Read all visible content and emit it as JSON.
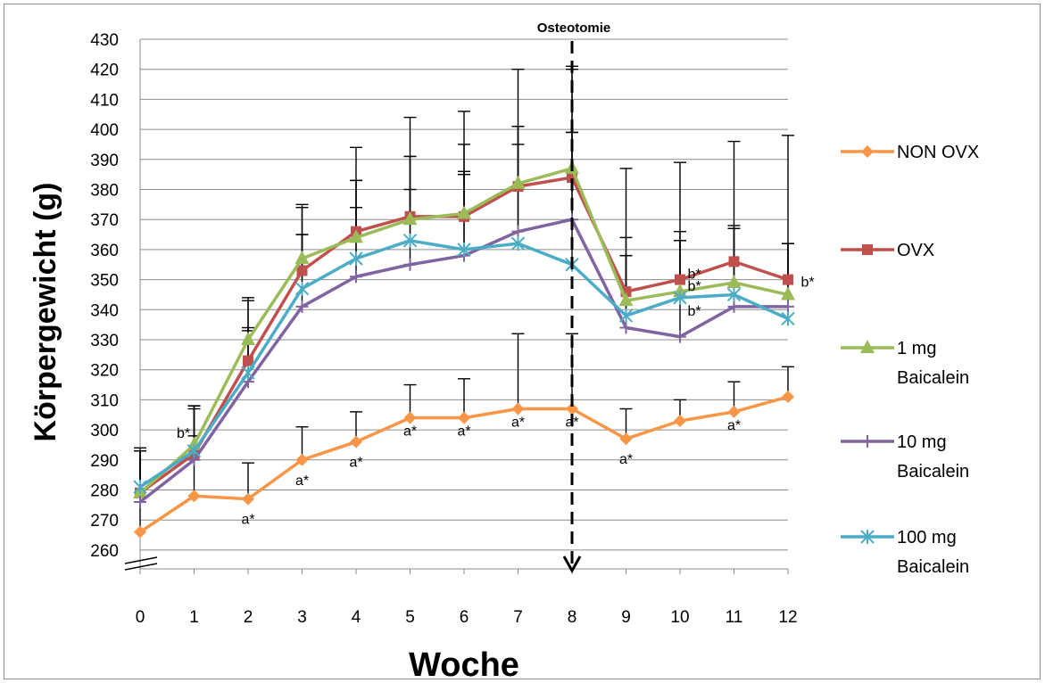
{
  "chart_data": {
    "type": "line",
    "ylabel": "Körpergewicht (g)",
    "xlabel": "Woche",
    "x": [
      0,
      1,
      2,
      3,
      4,
      5,
      6,
      7,
      8,
      9,
      10,
      11,
      12
    ],
    "x_tick_labels": [
      "0",
      "1",
      "2",
      "3",
      "4",
      "5",
      "6",
      "7",
      "8",
      "9",
      "10",
      "11",
      "12"
    ],
    "ylim": [
      255,
      430
    ],
    "y_ticks": [
      260,
      270,
      280,
      290,
      300,
      310,
      320,
      330,
      340,
      350,
      360,
      370,
      380,
      390,
      400,
      410,
      420,
      430
    ],
    "axis_break": true,
    "grid": "horizontal",
    "legend_position": "right",
    "marker_line": {
      "x": 8,
      "label": "Osteotomie"
    },
    "series": [
      {
        "name": "NON OVX",
        "color": "#f79646",
        "marker": "diamond",
        "values": [
          266,
          278,
          277,
          290,
          296,
          304,
          304,
          307,
          307,
          297,
          303,
          306,
          311
        ],
        "err_plus": [
          28,
          20,
          12,
          11,
          10,
          11,
          13,
          25,
          25,
          10,
          7,
          10,
          10
        ]
      },
      {
        "name": "OVX",
        "color": "#c0504d",
        "marker": "square",
        "values": [
          279,
          292,
          323,
          353,
          366,
          371,
          371,
          381,
          384,
          346,
          350,
          356,
          350
        ],
        "err_plus": [
          14,
          16,
          20,
          22,
          28,
          33,
          35,
          39,
          37,
          41,
          39,
          40,
          48
        ]
      },
      {
        "name": "1 mg Baicalein",
        "color": "#9bbb59",
        "marker": "triangle",
        "values": [
          279,
          295,
          330,
          357,
          364,
          370,
          372,
          382,
          387,
          343,
          346,
          349,
          345
        ],
        "err_plus": [
          14,
          13,
          14,
          17,
          19,
          21,
          23,
          19,
          12,
          21,
          20,
          19,
          17
        ]
      },
      {
        "name": "10 mg Baicalein",
        "color": "#8064a2",
        "marker": "plus",
        "values": [
          276,
          290,
          316,
          341,
          351,
          355,
          358,
          366,
          370,
          334,
          331,
          341,
          341
        ],
        "err_plus": [
          17,
          17,
          17,
          24,
          23,
          25,
          27,
          29,
          29,
          24,
          32,
          26,
          21
        ]
      },
      {
        "name": "100 mg Baicalein",
        "color": "#4bacc6",
        "marker": "star",
        "values": [
          281,
          293,
          319,
          347,
          357,
          363,
          360,
          362,
          355,
          338,
          344,
          345,
          337
        ],
        "err_plus": [
          12,
          15,
          15,
          18,
          26,
          28,
          26,
          39,
          65,
          20,
          19,
          22,
          25
        ]
      }
    ],
    "annotations": [
      {
        "text": "b*",
        "x": 1,
        "y": 295
      },
      {
        "text": "a*",
        "x": 2,
        "y": 277
      },
      {
        "text": "a*",
        "x": 3,
        "y": 290
      },
      {
        "text": "a*",
        "x": 4,
        "y": 296
      },
      {
        "text": "a*",
        "x": 5,
        "y": 304
      },
      {
        "text": "a*",
        "x": 6,
        "y": 304
      },
      {
        "text": "a*",
        "x": 7,
        "y": 307
      },
      {
        "text": "a*",
        "x": 8,
        "y": 307
      },
      {
        "text": "a*",
        "x": 9,
        "y": 297
      },
      {
        "text": "b*",
        "x": 10,
        "y": 350
      },
      {
        "text": "b*",
        "x": 10,
        "y": 346
      },
      {
        "text": "b*",
        "x": 10,
        "y": 341
      },
      {
        "text": "a*",
        "x": 11,
        "y": 306
      },
      {
        "text": "b*",
        "x": 12,
        "y": 350
      }
    ]
  }
}
